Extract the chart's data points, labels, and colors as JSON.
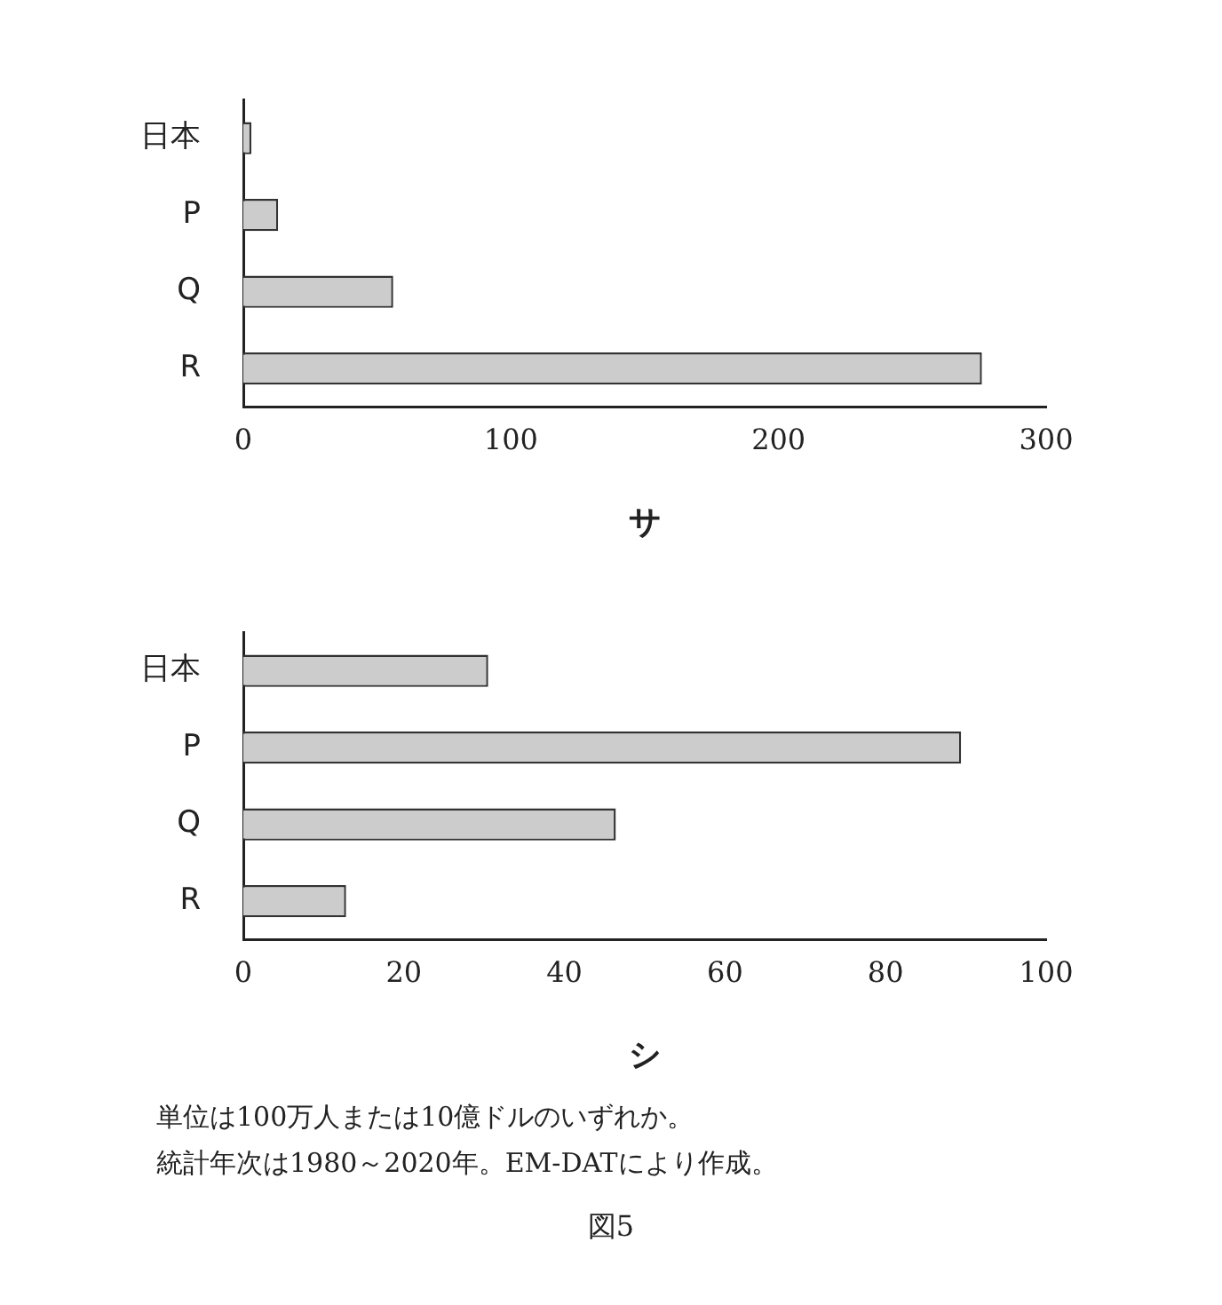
{
  "chart_data": [
    {
      "type": "bar",
      "orientation": "horizontal",
      "xlabel": "サ",
      "categories": [
        "日本",
        "P",
        "Q",
        "R"
      ],
      "values": [
        3,
        13,
        56,
        276
      ],
      "color": "#cccccc",
      "xlim": [
        0,
        300
      ],
      "xticks": [
        0,
        100,
        200,
        300
      ]
    },
    {
      "type": "bar",
      "orientation": "horizontal",
      "xlabel": "シ",
      "categories": [
        "日本",
        "P",
        "Q",
        "R"
      ],
      "values": [
        30.5,
        89.4,
        46.4,
        12.8
      ],
      "color": "#cccccc",
      "xlim": [
        0,
        100
      ],
      "xticks": [
        0,
        20,
        40,
        60,
        80,
        100
      ],
      "annotations": [
        "単位は100万人または10億ドルのいずれか。",
        "統計年次は1980～2020年。EM-DATにより作成。",
        "図5"
      ]
    }
  ]
}
